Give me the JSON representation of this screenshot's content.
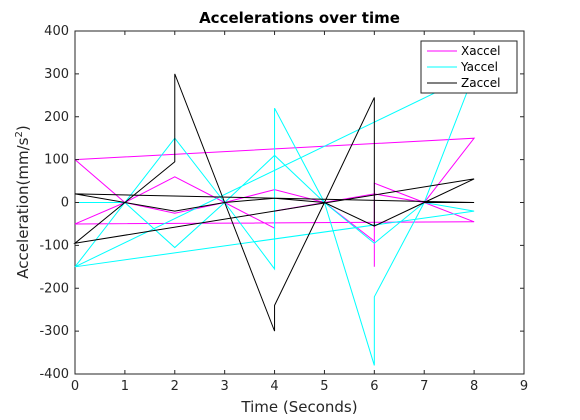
{
  "chart_data": {
    "type": "line",
    "title": "Accelerations over time",
    "xlabel": "Time (Seconds)",
    "ylabel_main": "Acceleration(mm/s",
    "ylabel_sup": "2",
    "ylabel_close": ")",
    "xlim": [
      0,
      9
    ],
    "ylim": [
      -400,
      400
    ],
    "xticks": [
      "0",
      "1",
      "2",
      "3",
      "4",
      "5",
      "6",
      "7",
      "8",
      "9"
    ],
    "yticks": [
      "-400",
      "-300",
      "-200",
      "-100",
      "0",
      "100",
      "200",
      "300",
      "400"
    ],
    "legend_placement": "top-right",
    "grid": false,
    "series": [
      {
        "name": "Xaccel",
        "color": "#FF00FF",
        "points": [
          [
            0,
            100
          ],
          [
            1,
            0
          ],
          [
            2,
            -25
          ],
          [
            3,
            0
          ],
          [
            4,
            30
          ],
          [
            5,
            0
          ],
          [
            6,
            20
          ],
          [
            7,
            0
          ],
          [
            8,
            -45
          ],
          [
            0,
            -50
          ],
          [
            1,
            0
          ],
          [
            2,
            60
          ],
          [
            3,
            0
          ],
          [
            4,
            -60
          ],
          [
            4,
            -20
          ],
          [
            5,
            0
          ],
          [
            6,
            -90
          ],
          [
            6,
            -150
          ],
          [
            6,
            45
          ],
          [
            7,
            0
          ],
          [
            8,
            150
          ],
          [
            0,
            100
          ]
        ]
      },
      {
        "name": "Yaccel",
        "color": "#00FFFF",
        "points": [
          [
            0,
            0
          ],
          [
            1,
            0
          ],
          [
            2,
            150
          ],
          [
            3,
            0
          ],
          [
            4,
            -155
          ],
          [
            4,
            220
          ],
          [
            5,
            0
          ],
          [
            6,
            -380
          ],
          [
            6,
            -220
          ],
          [
            7,
            0
          ],
          [
            8,
            300
          ],
          [
            0,
            -150
          ],
          [
            1,
            0
          ],
          [
            2,
            -105
          ],
          [
            3,
            0
          ],
          [
            4,
            110
          ],
          [
            5,
            0
          ],
          [
            6,
            -95
          ],
          [
            7,
            0
          ],
          [
            8,
            -20
          ],
          [
            0,
            -150
          ]
        ]
      },
      {
        "name": "Zaccel",
        "color": "#000000",
        "points": [
          [
            0,
            20
          ],
          [
            1,
            0
          ],
          [
            2,
            95
          ],
          [
            2,
            300
          ],
          [
            3,
            0
          ],
          [
            4,
            -300
          ],
          [
            4,
            -240
          ],
          [
            5,
            0
          ],
          [
            6,
            245
          ],
          [
            6,
            -55
          ],
          [
            7,
            0
          ],
          [
            8,
            55
          ],
          [
            0,
            -95
          ],
          [
            1,
            0
          ],
          [
            2,
            -20
          ],
          [
            3,
            0
          ],
          [
            4,
            10
          ],
          [
            5,
            0
          ],
          [
            6,
            -55
          ],
          [
            7,
            0
          ],
          [
            8,
            0
          ],
          [
            0,
            20
          ]
        ]
      }
    ]
  }
}
